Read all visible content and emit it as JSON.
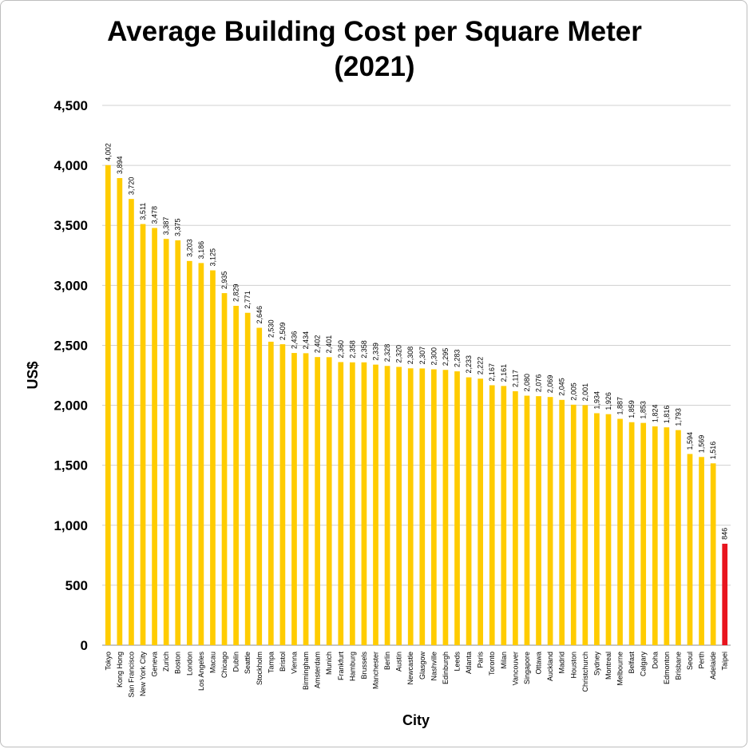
{
  "chart_data": {
    "type": "bar",
    "title_line1": "Average Building Cost per Square Meter",
    "title_line2": "(2021)",
    "xlabel": "City",
    "ylabel": "US$",
    "ylim": [
      0,
      4500
    ],
    "yticks": [
      0,
      500,
      1000,
      1500,
      2000,
      2500,
      3000,
      3500,
      4000,
      4500
    ],
    "ytick_labels": [
      "0",
      "500",
      "1,000",
      "1,500",
      "2,000",
      "2,500",
      "3,000",
      "3,500",
      "4,000",
      "4,500"
    ],
    "grid": true,
    "bar_color": "#FFCC00",
    "highlight_color": "#E8141E",
    "highlight_category": "Taipei",
    "categories": [
      "Tokyo",
      "Kong Hong",
      "San Francisco",
      "New York City",
      "Geneva",
      "Zurich",
      "Boston",
      "London",
      "Los Angeles",
      "Macau",
      "Chicago",
      "Dublin",
      "Seattle",
      "Stockholm",
      "Tampa",
      "Bristol",
      "Vienna",
      "Birmingham",
      "Amsterdam",
      "Munich",
      "Frankfurt",
      "Hamburg",
      "Brussels",
      "Manchester",
      "Berlin",
      "Austin",
      "Newcastle",
      "Glasgow",
      "Nashville",
      "Edinburgh",
      "Leeds",
      "Atlanta",
      "Paris",
      "Toronto",
      "Milan",
      "Vancouver",
      "Singapore",
      "Ottawa",
      "Auckland",
      "Madrid",
      "Houston",
      "Christchurch",
      "Sydney",
      "Montreal",
      "Melbourne",
      "Belfast",
      "Calgary",
      "Doha",
      "Edmonton",
      "Brisbane",
      "Seoul",
      "Perth",
      "Adelaide",
      "Taipei"
    ],
    "values": [
      4002,
      3894,
      3720,
      3511,
      3478,
      3387,
      3375,
      3203,
      3186,
      3125,
      2935,
      2829,
      2771,
      2646,
      2530,
      2509,
      2436,
      2434,
      2402,
      2401,
      2360,
      2358,
      2358,
      2339,
      2328,
      2320,
      2308,
      2307,
      2300,
      2295,
      2283,
      2233,
      2222,
      2167,
      2161,
      2117,
      2080,
      2076,
      2069,
      2045,
      2005,
      2001,
      1934,
      1926,
      1887,
      1859,
      1853,
      1824,
      1816,
      1793,
      1594,
      1569,
      1516,
      846
    ],
    "value_labels": [
      "4,002",
      "3,894",
      "3,720",
      "3,511",
      "3,478",
      "3,387",
      "3,375",
      "3,203",
      "3,186",
      "3,125",
      "2,935",
      "2,829",
      "2,771",
      "2,646",
      "2,530",
      "2,509",
      "2,436",
      "2,434",
      "2,402",
      "2,401",
      "2,360",
      "2,358",
      "2,358",
      "2,339",
      "2,328",
      "2,320",
      "2,308",
      "2,307",
      "2,300",
      "2,295",
      "2,283",
      "2,233",
      "2,222",
      "2,167",
      "2,161",
      "2,117",
      "2,080",
      "2,076",
      "2,069",
      "2,045",
      "2,005",
      "2,001",
      "1,934",
      "1,926",
      "1,887",
      "1,859",
      "1,853",
      "1,824",
      "1,816",
      "1,793",
      "1,594",
      "1,569",
      "1,516",
      "846"
    ]
  }
}
